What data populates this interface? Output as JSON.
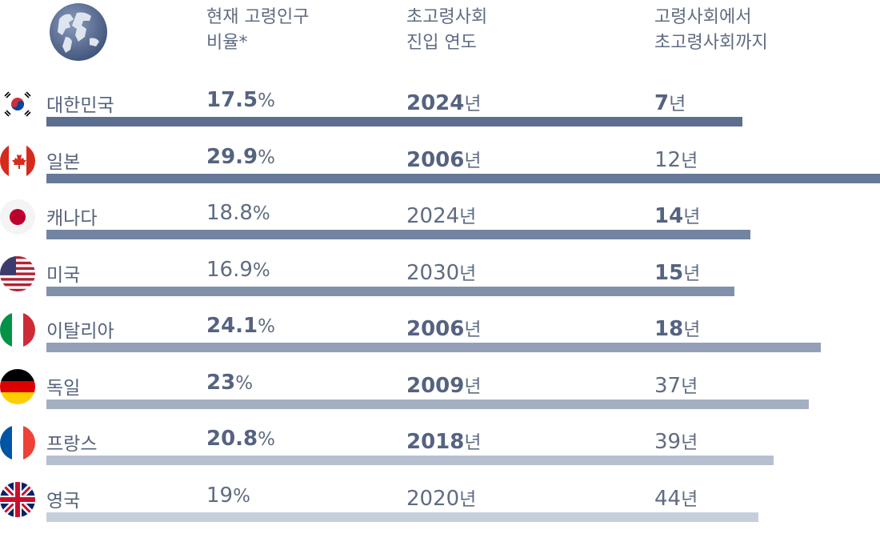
{
  "headers": {
    "col1": [
      "현재 고령인구",
      "비율*"
    ],
    "col2": [
      "초고령사회",
      "진입 연도"
    ],
    "col3": [
      "고령사회에서",
      "초고령사회까지"
    ]
  },
  "chart_data": {
    "type": "table",
    "columns": [
      "현재 고령인구 비율*",
      "초고령사회 진입 연도",
      "고령사회에서 초고령사회까지"
    ],
    "rows": [
      {
        "country": "대한민국",
        "flag": "korea-flag-icon",
        "ratio": "17.5",
        "ratio_unit": "%",
        "ratio_bold": true,
        "year": "2024",
        "year_unit": "년",
        "year_bold": true,
        "years": "7",
        "years_unit": "년",
        "years_bold": true,
        "bar": 870,
        "color": "#5b6e8f"
      },
      {
        "country": "일본",
        "flag": "canada-flag-icon",
        "ratio": "29.9",
        "ratio_unit": "%",
        "ratio_bold": true,
        "year": "2006",
        "year_unit": "년",
        "year_bold": true,
        "years": "12",
        "years_unit": "년",
        "years_bold": false,
        "bar": 1042,
        "color": "#66799a"
      },
      {
        "country": "캐나다",
        "flag": "japan-flag-icon",
        "ratio": "18.8",
        "ratio_unit": "%",
        "ratio_bold": false,
        "year": "2024",
        "year_unit": "년",
        "year_bold": false,
        "years": "14",
        "years_unit": "년",
        "years_bold": true,
        "bar": 880,
        "color": "#7384a2"
      },
      {
        "country": "미국",
        "flag": "usa-flag-icon",
        "ratio": "16.9",
        "ratio_unit": "%",
        "ratio_bold": false,
        "year": "2030",
        "year_unit": "년",
        "year_bold": false,
        "years": "15",
        "years_unit": "년",
        "years_bold": true,
        "bar": 860,
        "color": "#8190aa"
      },
      {
        "country": "이탈리아",
        "flag": "italy-flag-icon",
        "ratio": "24.1",
        "ratio_unit": "%",
        "ratio_bold": true,
        "year": "2006",
        "year_unit": "년",
        "year_bold": true,
        "years": "18",
        "years_unit": "년",
        "years_bold": true,
        "bar": 968,
        "color": "#939fb6"
      },
      {
        "country": "독일",
        "flag": "germany-flag-icon",
        "ratio": "23",
        "ratio_unit": "%",
        "ratio_bold": true,
        "year": "2009",
        "year_unit": "년",
        "year_bold": true,
        "years": "37",
        "years_unit": "년",
        "years_bold": false,
        "bar": 953,
        "color": "#a5afc2"
      },
      {
        "country": "프랑스",
        "flag": "france-flag-icon",
        "ratio": "20.8",
        "ratio_unit": "%",
        "ratio_bold": true,
        "year": "2018",
        "year_unit": "년",
        "year_bold": true,
        "years": "39",
        "years_unit": "년",
        "years_bold": false,
        "bar": 909,
        "color": "#b6bfcf"
      },
      {
        "country": "영국",
        "flag": "uk-flag-icon",
        "ratio": "19",
        "ratio_unit": "%",
        "ratio_bold": false,
        "year": "2020",
        "year_unit": "년",
        "year_bold": false,
        "years": "44",
        "years_unit": "년",
        "years_bold": false,
        "bar": 890,
        "color": "#c7cedb"
      }
    ]
  }
}
